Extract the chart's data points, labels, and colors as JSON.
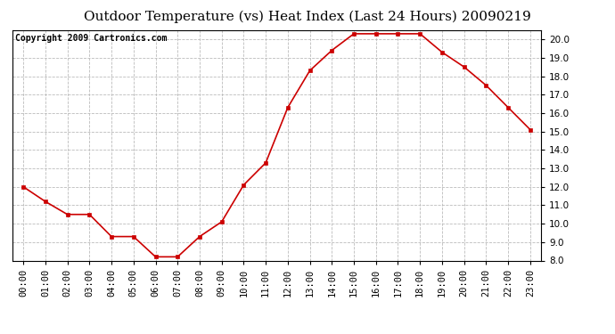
{
  "title": "Outdoor Temperature (vs) Heat Index (Last 24 Hours) 20090219",
  "copyright": "Copyright 2009 Cartronics.com",
  "x_labels": [
    "00:00",
    "01:00",
    "02:00",
    "03:00",
    "04:00",
    "05:00",
    "06:00",
    "07:00",
    "08:00",
    "09:00",
    "10:00",
    "11:00",
    "12:00",
    "13:00",
    "14:00",
    "15:00",
    "16:00",
    "17:00",
    "18:00",
    "19:00",
    "20:00",
    "21:00",
    "22:00",
    "23:00"
  ],
  "y_values": [
    12.0,
    11.2,
    10.5,
    10.5,
    9.3,
    9.3,
    8.2,
    8.2,
    9.3,
    10.1,
    12.1,
    13.3,
    16.3,
    18.3,
    19.4,
    20.3,
    20.3,
    20.3,
    20.3,
    19.3,
    18.5,
    17.5,
    16.3,
    15.1
  ],
  "line_color": "#cc0000",
  "marker": "s",
  "marker_size": 3,
  "marker_color": "#cc0000",
  "ylim": [
    8.0,
    20.5
  ],
  "yticks": [
    8.0,
    9.0,
    10.0,
    11.0,
    12.0,
    13.0,
    14.0,
    15.0,
    16.0,
    17.0,
    18.0,
    19.0,
    20.0
  ],
  "background_color": "#ffffff",
  "plot_bg_color": "#ffffff",
  "grid_color": "#bbbbbb",
  "title_fontsize": 11,
  "copyright_fontsize": 7,
  "tick_fontsize": 7.5
}
